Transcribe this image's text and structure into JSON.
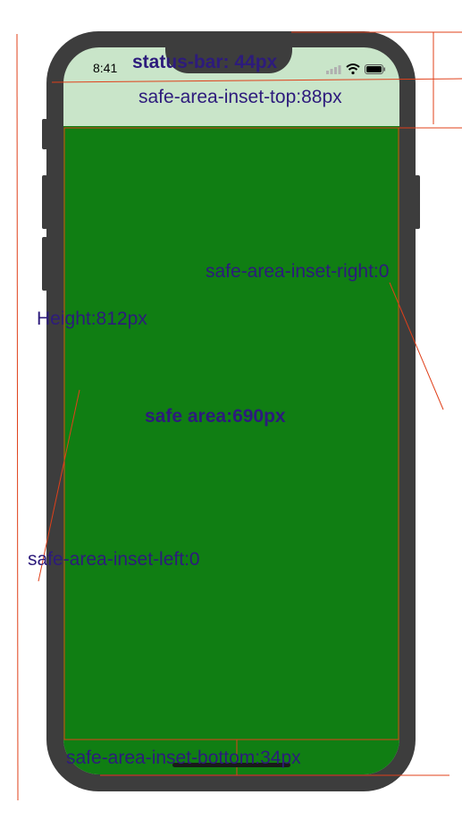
{
  "status_bar": {
    "time": "8:41"
  },
  "colors": {
    "frame": "#3d3d3d",
    "status_bg": "#c9e5c9",
    "safe_area": "#107e13",
    "label": "#2d1b7c",
    "guide_line": "#e0401a"
  },
  "labels": {
    "status_bar": "status-bar:  44px",
    "inset_top": "safe-area-inset-top:88px",
    "inset_right": "safe-area-inset-right:0",
    "height": "Height:812px",
    "safe_area": "safe area:690px",
    "inset_left": "safe-area-inset-left:0",
    "inset_bottom": "safe-area-inset-bottom:34px"
  }
}
